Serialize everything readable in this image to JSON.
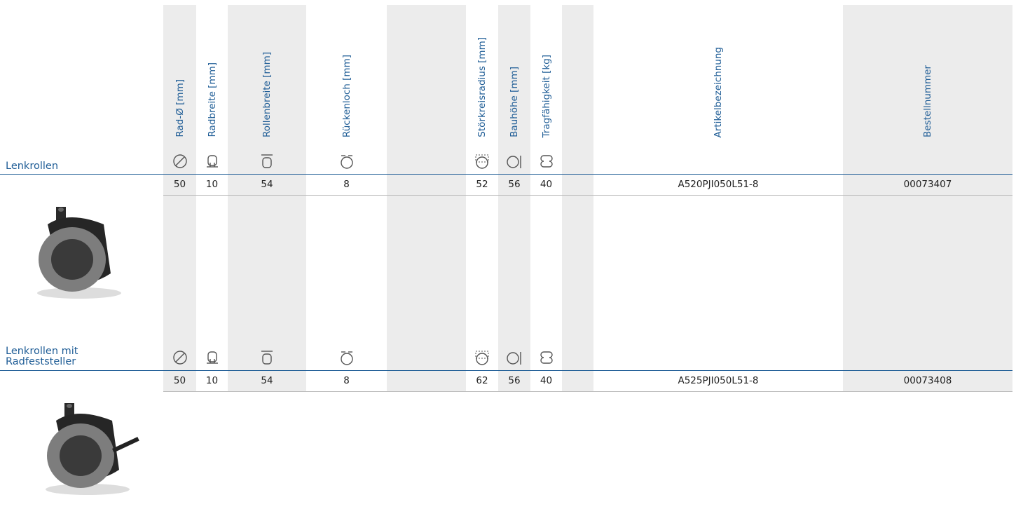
{
  "headers": [
    "Rad-Ø [mm]",
    "Radbreite [mm]",
    "Rollenbreite [mm]",
    "Rückenloch [mm]",
    "Störkreisradius [mm]",
    "Bauhöhe [mm]",
    "Tragfähigkeit [kg]",
    "Artikelbezeichnung",
    "Bestellnummer"
  ],
  "rows": [
    {
      "label": "Lenkrollen",
      "cells": [
        50,
        10,
        54,
        8,
        52,
        56,
        40,
        "A520PJI050L51-8",
        "00073407"
      ]
    },
    {
      "label": "Lenkrollen mit Radfeststeller",
      "cells": [
        50,
        10,
        54,
        8,
        62,
        56,
        40,
        "A525PJI050L51-8",
        "00073408"
      ]
    }
  ]
}
